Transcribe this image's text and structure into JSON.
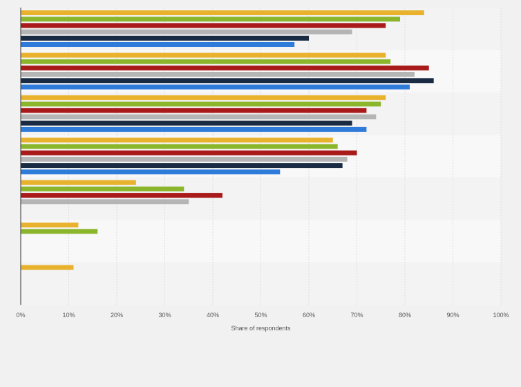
{
  "chart_data": {
    "type": "bar",
    "orientation": "horizontal",
    "title": "",
    "xlabel": "Share of respondents",
    "ylabel": "",
    "xlim": [
      0,
      100
    ],
    "x_ticks": [
      "0%",
      "10%",
      "20%",
      "30%",
      "40%",
      "50%",
      "60%",
      "70%",
      "80%",
      "90%",
      "100%"
    ],
    "grid": true,
    "legend": "none",
    "groups": 7,
    "series": [
      {
        "color": "#e8b22c",
        "values": [
          84,
          76,
          76,
          65,
          24,
          12,
          11
        ]
      },
      {
        "color": "#8bb62b",
        "values": [
          79,
          77,
          75,
          66,
          34,
          16,
          null
        ]
      },
      {
        "color": "#a91a1a",
        "values": [
          76,
          85,
          72,
          70,
          42,
          null,
          null
        ]
      },
      {
        "color": "#b5b5b5",
        "values": [
          69,
          82,
          74,
          68,
          35,
          null,
          null
        ]
      },
      {
        "color": "#1a2c44",
        "values": [
          60,
          86,
          69,
          67,
          null,
          null,
          null
        ]
      },
      {
        "color": "#2f7bd9",
        "values": [
          57,
          81,
          72,
          54,
          null,
          null,
          null
        ]
      }
    ]
  }
}
